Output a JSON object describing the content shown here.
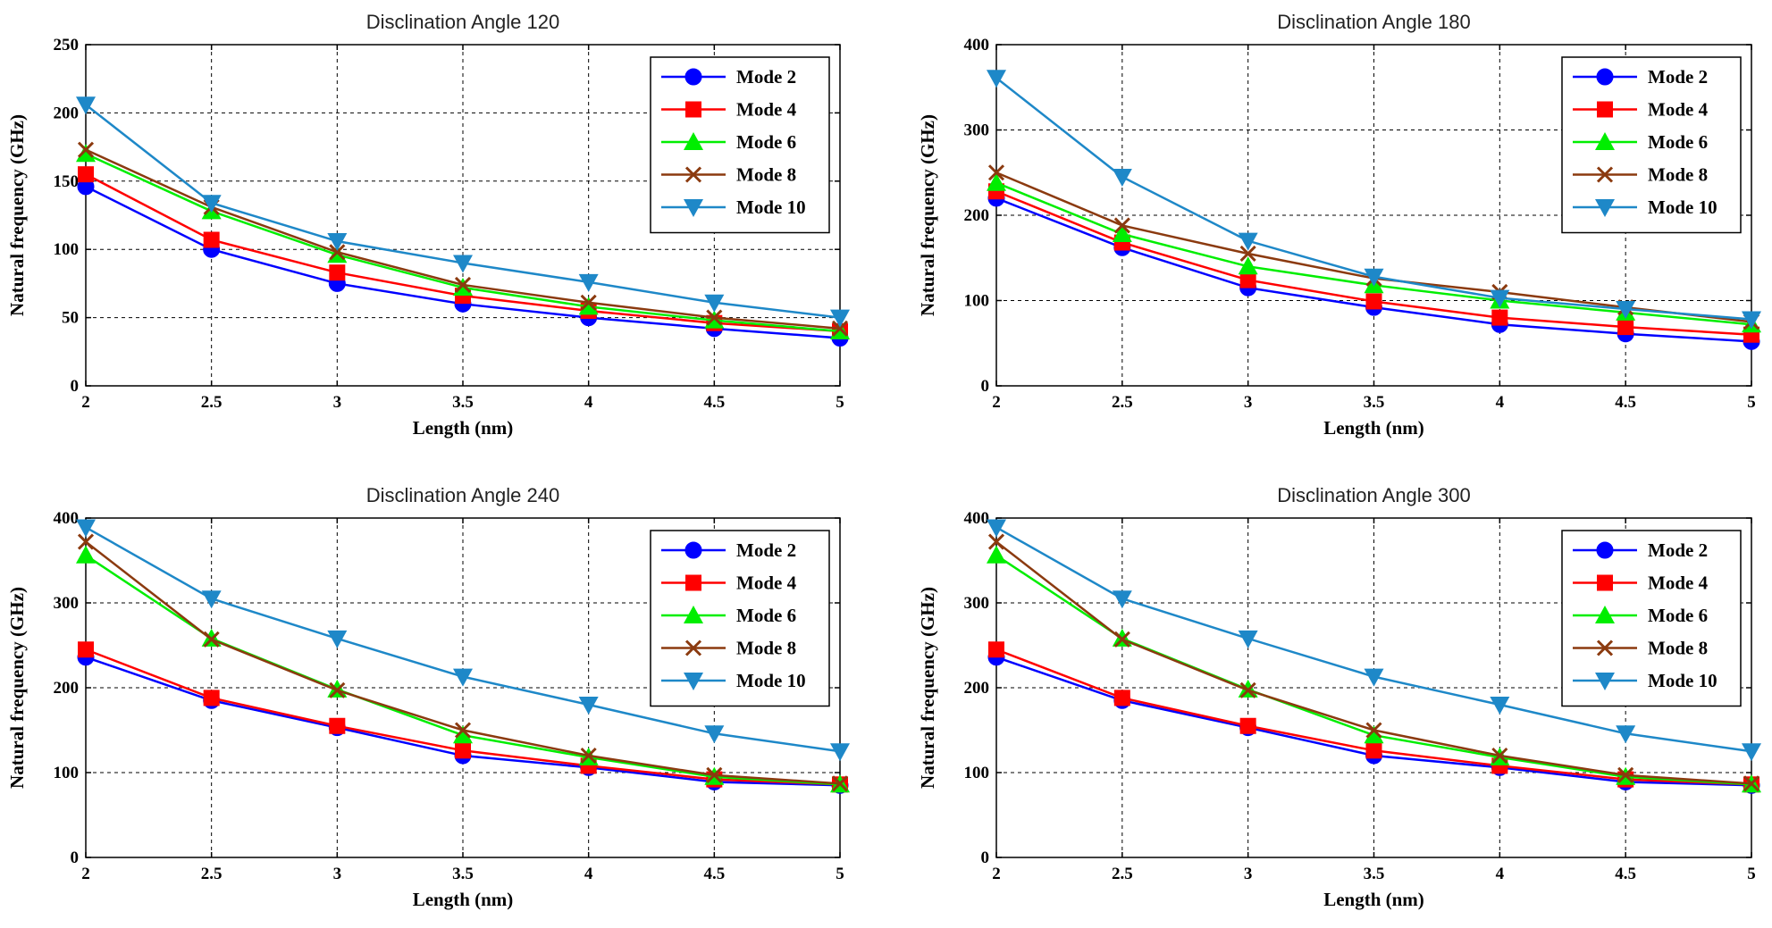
{
  "figure": {
    "series_colors": {
      "Mode 2": "#0000ff",
      "Mode 4": "#ff0000",
      "Mode 6": "#00ee00",
      "Mode 8": "#8b3a0f",
      "Mode 10": "#1e88c8"
    },
    "series_markers": {
      "Mode 2": "circle",
      "Mode 4": "square",
      "Mode 6": "triangle-up",
      "Mode 8": "x-cross",
      "Mode 10": "triangle-down"
    }
  },
  "chart_data": [
    {
      "type": "line",
      "title": "Disclination Angle 120",
      "xlabel": "Length (nm)",
      "ylabel": "Natural frequency (GHz)",
      "xlim": [
        2,
        5
      ],
      "ylim": [
        0,
        250
      ],
      "x_ticks": [
        2,
        2.5,
        3,
        3.5,
        4,
        4.5,
        5
      ],
      "x_tick_labels": [
        "2",
        "2.5",
        "3",
        "3.5",
        "4",
        "4.5",
        "5"
      ],
      "y_ticks": [
        0,
        50,
        100,
        150,
        200,
        250
      ],
      "y_tick_labels": [
        "0",
        "50",
        "100",
        "150",
        "200",
        "250"
      ],
      "grid": true,
      "legend_position": "top-right",
      "x": [
        2,
        2.5,
        3,
        3.5,
        4,
        4.5,
        5
      ],
      "series": [
        {
          "name": "Mode 2",
          "values": [
            146,
            100,
            75,
            60,
            50,
            42,
            35
          ]
        },
        {
          "name": "Mode 4",
          "values": [
            155,
            107,
            83,
            66,
            55,
            46,
            40
          ]
        },
        {
          "name": "Mode 6",
          "values": [
            170,
            128,
            96,
            72,
            58,
            48,
            40
          ]
        },
        {
          "name": "Mode 8",
          "values": [
            173,
            131,
            98,
            74,
            61,
            50,
            42
          ]
        },
        {
          "name": "Mode 10",
          "values": [
            206,
            134,
            106,
            90,
            76,
            61,
            50
          ]
        }
      ]
    },
    {
      "type": "line",
      "title": "Disclination Angle 180",
      "xlabel": "Length (nm)",
      "ylabel": "Natural frequency (GHz)",
      "xlim": [
        2,
        5
      ],
      "ylim": [
        0,
        400
      ],
      "x_ticks": [
        2,
        2.5,
        3,
        3.5,
        4,
        4.5,
        5
      ],
      "x_tick_labels": [
        "2",
        "2.5",
        "3",
        "3.5",
        "4",
        "4.5",
        "5"
      ],
      "y_ticks": [
        0,
        100,
        200,
        300,
        400
      ],
      "y_tick_labels": [
        "0",
        "100",
        "200",
        "300",
        "400"
      ],
      "grid": true,
      "legend_position": "top-right",
      "x": [
        2,
        2.5,
        3,
        3.5,
        4,
        4.5,
        5
      ],
      "series": [
        {
          "name": "Mode 2",
          "values": [
            220,
            162,
            115,
            92,
            72,
            61,
            52
          ]
        },
        {
          "name": "Mode 4",
          "values": [
            228,
            168,
            124,
            99,
            80,
            69,
            60
          ]
        },
        {
          "name": "Mode 6",
          "values": [
            238,
            178,
            140,
            118,
            100,
            86,
            72
          ]
        },
        {
          "name": "Mode 8",
          "values": [
            250,
            188,
            155,
            126,
            110,
            92,
            75
          ]
        },
        {
          "name": "Mode 10",
          "values": [
            361,
            245,
            170,
            128,
            103,
            90,
            78
          ]
        }
      ]
    },
    {
      "type": "line",
      "title": "Disclination Angle 240",
      "xlabel": "Length (nm)",
      "ylabel": "Natural frequency (GHz)",
      "xlim": [
        2,
        5
      ],
      "ylim": [
        0,
        400
      ],
      "x_ticks": [
        2,
        2.5,
        3,
        3.5,
        4,
        4.5,
        5
      ],
      "x_tick_labels": [
        "2",
        "2.5",
        "3",
        "3.5",
        "4",
        "4.5",
        "5"
      ],
      "y_ticks": [
        0,
        100,
        200,
        300,
        400
      ],
      "y_tick_labels": [
        "0",
        "100",
        "200",
        "300",
        "400"
      ],
      "grid": true,
      "legend_position": "top-right",
      "x": [
        2,
        2.5,
        3,
        3.5,
        4,
        4.5,
        5
      ],
      "series": [
        {
          "name": "Mode 2",
          "values": [
            236,
            185,
            153,
            120,
            106,
            89,
            85
          ]
        },
        {
          "name": "Mode 4",
          "values": [
            245,
            188,
            155,
            126,
            108,
            92,
            86
          ]
        },
        {
          "name": "Mode 6",
          "values": [
            356,
            258,
            198,
            144,
            118,
            95,
            86
          ]
        },
        {
          "name": "Mode 8",
          "values": [
            372,
            257,
            197,
            150,
            120,
            97,
            87
          ]
        },
        {
          "name": "Mode 10",
          "values": [
            389,
            305,
            258,
            213,
            180,
            146,
            125
          ]
        }
      ]
    },
    {
      "type": "line",
      "title": "Disclination Angle 300",
      "xlabel": "Length (nm)",
      "ylabel": "Natural frequency (GHz)",
      "xlim": [
        2,
        5
      ],
      "ylim": [
        0,
        400
      ],
      "x_ticks": [
        2,
        2.5,
        3,
        3.5,
        4,
        4.5,
        5
      ],
      "x_tick_labels": [
        "2",
        "2.5",
        "3",
        "3.5",
        "4",
        "4.5",
        "5"
      ],
      "y_ticks": [
        0,
        100,
        200,
        300,
        400
      ],
      "y_tick_labels": [
        "0",
        "100",
        "200",
        "300",
        "400"
      ],
      "grid": true,
      "legend_position": "top-right",
      "x": [
        2,
        2.5,
        3,
        3.5,
        4,
        4.5,
        5
      ],
      "series": [
        {
          "name": "Mode 2",
          "values": [
            236,
            185,
            153,
            120,
            106,
            89,
            85
          ]
        },
        {
          "name": "Mode 4",
          "values": [
            245,
            188,
            155,
            126,
            108,
            92,
            86
          ]
        },
        {
          "name": "Mode 6",
          "values": [
            356,
            258,
            198,
            144,
            118,
            95,
            86
          ]
        },
        {
          "name": "Mode 8",
          "values": [
            372,
            257,
            197,
            150,
            120,
            97,
            87
          ]
        },
        {
          "name": "Mode 10",
          "values": [
            389,
            305,
            258,
            213,
            180,
            146,
            125
          ]
        }
      ]
    }
  ]
}
